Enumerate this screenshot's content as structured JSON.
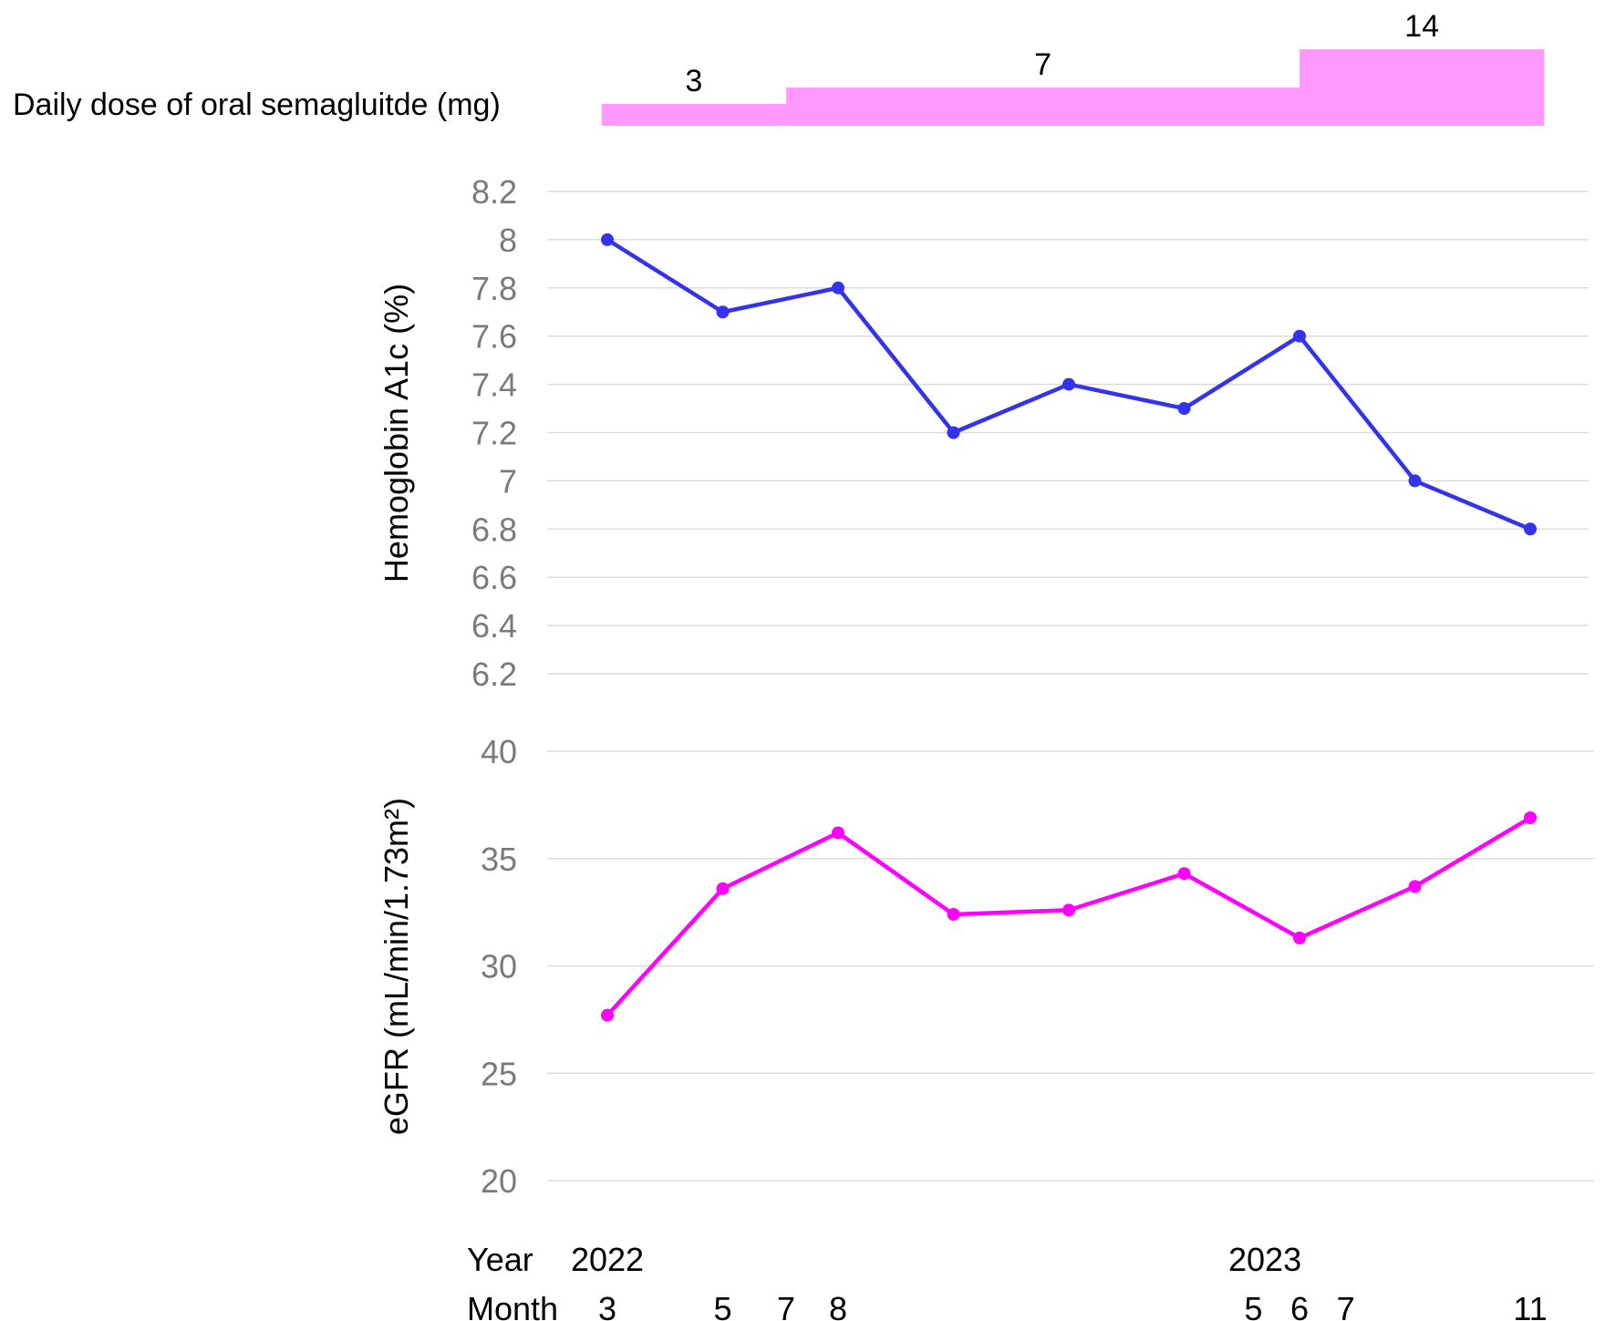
{
  "dose_panel": {
    "label": "Daily dose of oral semagluitde (mg)",
    "color": "#ff99ff",
    "segments": [
      {
        "dose": 3,
        "label": "3",
        "start_index": -0.05,
        "end_index": 1.55
      },
      {
        "dose": 7,
        "label": "7",
        "start_index": 1.55,
        "end_index": 6.0
      },
      {
        "dose": 14,
        "label": "14",
        "start_index": 6.0,
        "end_index": 8.12
      }
    ]
  },
  "time_axis": {
    "year_label": "Year",
    "month_label": "Month",
    "years": [
      {
        "label": "2022",
        "index": 0
      },
      {
        "label": "2023",
        "index": 5.7
      }
    ],
    "months": [
      {
        "label": "3",
        "index": 0
      },
      {
        "label": "5",
        "index": 1
      },
      {
        "label": "7",
        "index": 1.55
      },
      {
        "label": "8",
        "index": 2
      },
      {
        "label": "5",
        "index": 5.6
      },
      {
        "label": "6",
        "index": 6
      },
      {
        "label": "7",
        "index": 6.4
      },
      {
        "label": "11",
        "index": 8
      }
    ]
  },
  "chart_data": [
    {
      "type": "line",
      "ylabel": "Hemoglobin A1c (%)",
      "ylim": [
        6.2,
        8.2
      ],
      "yticks": [
        8.2,
        8,
        7.8,
        7.6,
        7.4,
        7.2,
        7,
        6.8,
        6.6,
        6.4,
        6.2
      ],
      "ytick_labels": [
        "8.2",
        "8",
        "7.8",
        "7.6",
        "7.4",
        "7.2",
        "7",
        "6.8",
        "6.6",
        "6.4",
        "6.2"
      ],
      "grid": true,
      "series": [
        {
          "color": "#3333ee",
          "x": [
            0,
            1,
            2,
            3,
            4,
            5,
            6,
            7,
            8
          ],
          "values": [
            8.0,
            7.7,
            7.8,
            7.2,
            7.4,
            7.3,
            7.6,
            7.0,
            6.8
          ]
        }
      ]
    },
    {
      "type": "line",
      "ylabel": "eGFR (mL/min/1.73m²)",
      "ylim": [
        20,
        40
      ],
      "yticks": [
        40,
        35,
        30,
        25,
        20
      ],
      "ytick_labels": [
        "40",
        "35",
        "30",
        "25",
        "20"
      ],
      "grid": true,
      "series": [
        {
          "color": "#ff00ff",
          "x": [
            0,
            1,
            2,
            3,
            4,
            5,
            6,
            7,
            8
          ],
          "values": [
            27.7,
            33.6,
            36.2,
            32.4,
            32.6,
            34.3,
            31.3,
            33.7,
            36.9
          ]
        }
      ]
    }
  ]
}
